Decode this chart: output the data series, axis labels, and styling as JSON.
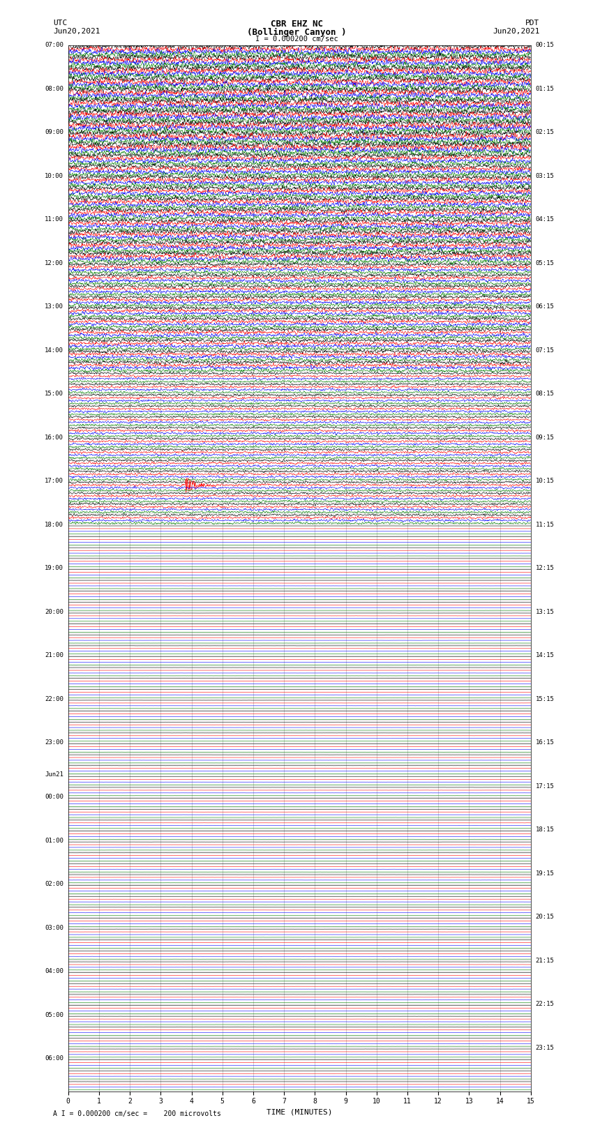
{
  "title_line1": "CBR EHZ NC",
  "title_line2": "(Bollinger Canyon )",
  "scale_text": "I = 0.000200 cm/sec",
  "utc_label": "UTC",
  "pdt_label": "PDT",
  "date_left": "Jun20,2021",
  "date_right": "Jun20,2021",
  "xlabel": "TIME (MINUTES)",
  "footer_text": "A I = 0.000200 cm/sec =    200 microvolts",
  "left_times_utc": [
    "07:00",
    "",
    "",
    "",
    "08:00",
    "",
    "",
    "",
    "09:00",
    "",
    "",
    "",
    "10:00",
    "",
    "",
    "",
    "11:00",
    "",
    "",
    "",
    "12:00",
    "",
    "",
    "",
    "13:00",
    "",
    "",
    "",
    "14:00",
    "",
    "",
    "",
    "15:00",
    "",
    "",
    "",
    "16:00",
    "",
    "",
    "",
    "17:00",
    "",
    "",
    "",
    "18:00",
    "",
    "",
    "",
    "19:00",
    "",
    "",
    "",
    "20:00",
    "",
    "",
    "",
    "21:00",
    "",
    "",
    "",
    "22:00",
    "",
    "",
    "",
    "23:00",
    "",
    "",
    "",
    "Jun21",
    "00:00",
    "",
    "",
    "",
    "01:00",
    "",
    "",
    "",
    "02:00",
    "",
    "",
    "",
    "03:00",
    "",
    "",
    "",
    "04:00",
    "",
    "",
    "",
    "05:00",
    "",
    "",
    "",
    "06:00",
    "",
    "",
    ""
  ],
  "right_times_pdt": [
    "00:15",
    "",
    "",
    "",
    "01:15",
    "",
    "",
    "",
    "02:15",
    "",
    "",
    "",
    "03:15",
    "",
    "",
    "",
    "04:15",
    "",
    "",
    "",
    "05:15",
    "",
    "",
    "",
    "06:15",
    "",
    "",
    "",
    "07:15",
    "",
    "",
    "",
    "08:15",
    "",
    "",
    "",
    "09:15",
    "",
    "",
    "",
    "10:15",
    "",
    "",
    "",
    "11:15",
    "",
    "",
    "",
    "12:15",
    "",
    "",
    "",
    "13:15",
    "",
    "",
    "",
    "14:15",
    "",
    "",
    "",
    "15:15",
    "",
    "",
    "",
    "16:15",
    "",
    "",
    "",
    "17:15",
    "",
    "",
    "",
    "18:15",
    "",
    "",
    "",
    "19:15",
    "",
    "",
    "",
    "20:15",
    "",
    "",
    "",
    "21:15",
    "",
    "",
    "",
    "22:15",
    "",
    "",
    "",
    "23:15",
    "",
    "",
    ""
  ],
  "n_rows": 96,
  "n_traces_per_row": 4,
  "trace_colors": [
    "black",
    "red",
    "blue",
    "green"
  ],
  "active_row_count": 44,
  "xlim": [
    0,
    15
  ],
  "xticks": [
    0,
    1,
    2,
    3,
    4,
    5,
    6,
    7,
    8,
    9,
    10,
    11,
    12,
    13,
    14,
    15
  ],
  "background_color": "white",
  "grid_color": "#888888",
  "seed": 42,
  "seismic_event_row": 40,
  "seismic_event_trace": 1,
  "seismic_event_time": 3.8
}
